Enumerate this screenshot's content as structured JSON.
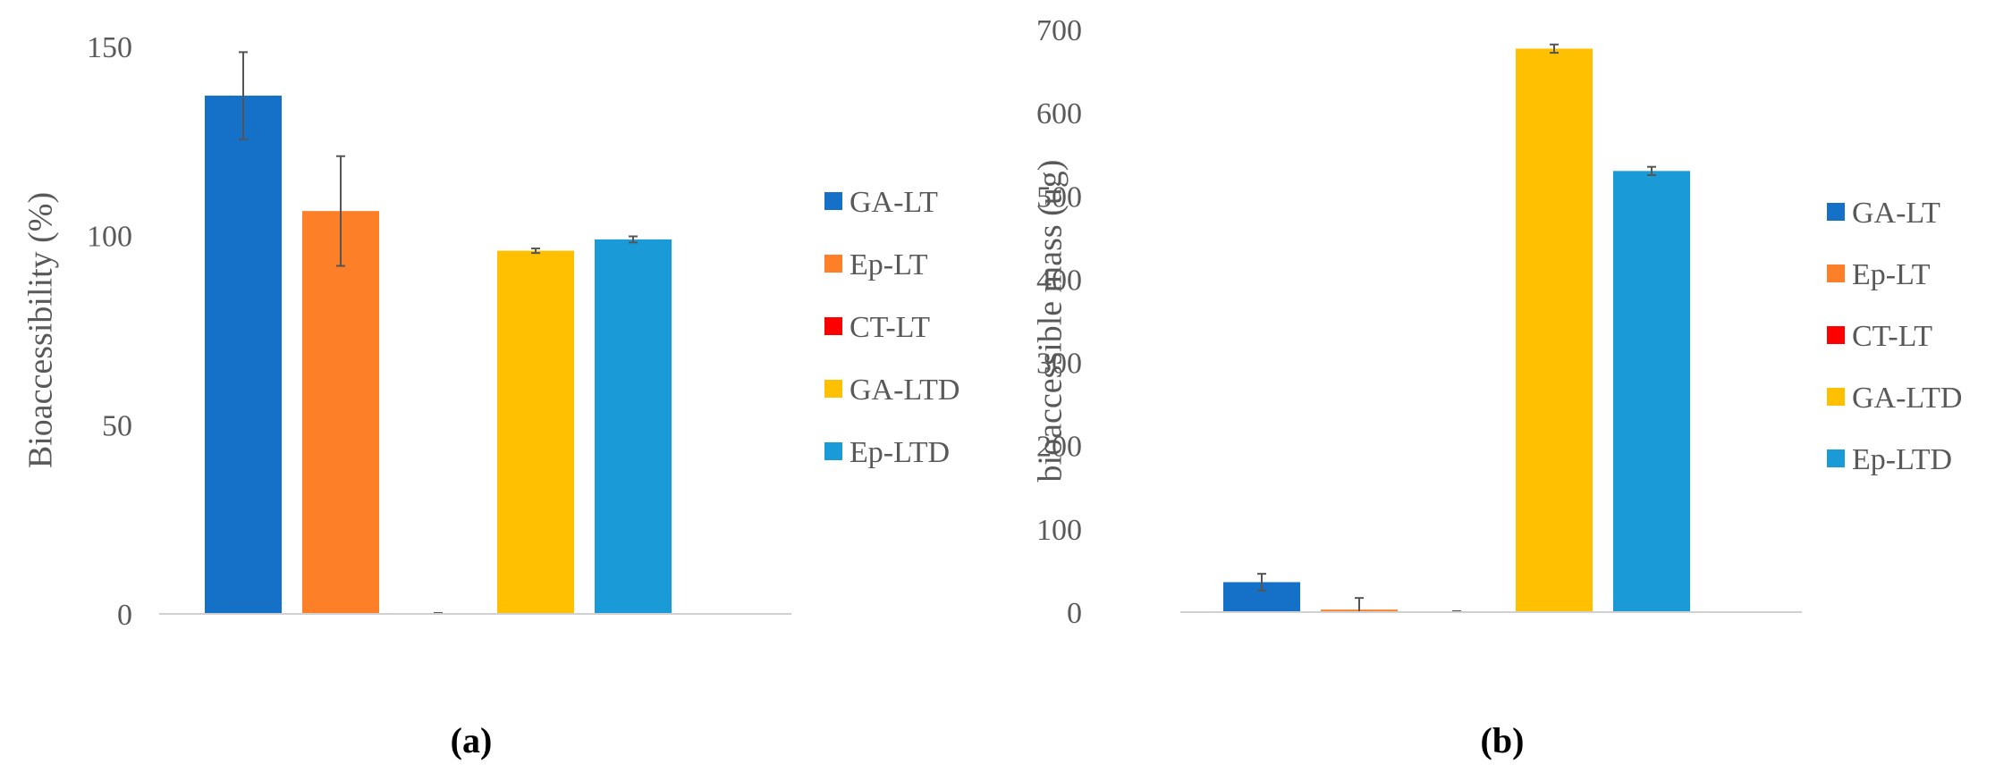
{
  "chart_data": [
    {
      "type": "bar",
      "caption": "(a)",
      "ylabel": "Bioaccessibility (%)",
      "xlabel": "",
      "ylim": [
        0,
        150
      ],
      "yticks": [
        0,
        50,
        100,
        150
      ],
      "grid": false,
      "legend_position": "right",
      "series": [
        {
          "name": "GA-LT",
          "color": "#1570C8",
          "value": 137,
          "error": 11.5
        },
        {
          "name": "Ep-LT",
          "color": "#FD7F27",
          "value": 106.5,
          "error": 14.5
        },
        {
          "name": "CT-LT",
          "color": "#FD0000",
          "value": 0,
          "error": 0
        },
        {
          "name": "GA-LTD",
          "color": "#FEC000",
          "value": 96,
          "error": 0.6
        },
        {
          "name": "Ep-LTD",
          "color": "#1A9BD8",
          "value": 99,
          "error": 0.8
        }
      ]
    },
    {
      "type": "bar",
      "caption": "(b)",
      "ylabel": "bioaccessible mass (ug)",
      "xlabel": "",
      "ylim": [
        0,
        700
      ],
      "yticks": [
        0,
        100,
        200,
        300,
        400,
        500,
        600,
        700
      ],
      "grid": false,
      "legend_position": "right",
      "series": [
        {
          "name": "GA-LT",
          "color": "#1570C8",
          "value": 36,
          "error": 10
        },
        {
          "name": "Ep-LT",
          "color": "#FD7F27",
          "value": 3,
          "error": 14
        },
        {
          "name": "CT-LT",
          "color": "#FD0000",
          "value": 0,
          "error": 0
        },
        {
          "name": "GA-LTD",
          "color": "#FEC000",
          "value": 677,
          "error": 5
        },
        {
          "name": "Ep-LTD",
          "color": "#1A9BD8",
          "value": 530,
          "error": 5
        }
      ]
    }
  ]
}
